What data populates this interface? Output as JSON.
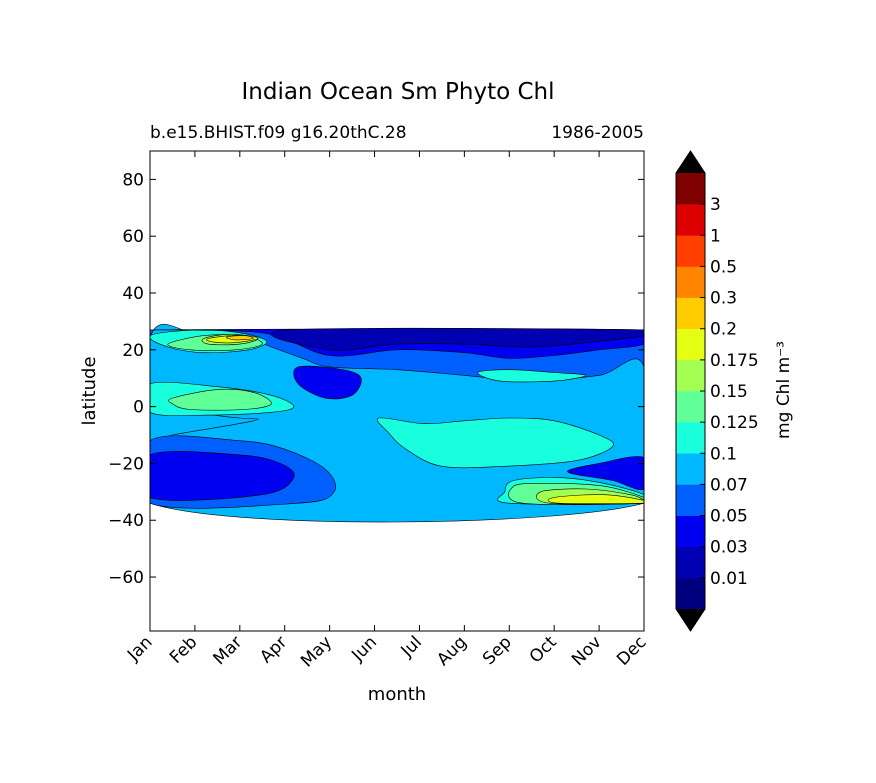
{
  "chart_data": {
    "type": "heatmap",
    "title": "Indian Ocean Sm Phyto Chl",
    "subtitle_left": "b.e15.BHIST.f09 g16.20thC.28",
    "subtitle_right": "1986-2005",
    "xlabel": "month",
    "ylabel": "latitude",
    "x_tick_labels": [
      "Jan",
      "Feb",
      "Mar",
      "Apr",
      "May",
      "Jun",
      "Jul",
      "Aug",
      "Sep",
      "Oct",
      "Nov",
      "Dec"
    ],
    "xlim": [
      0.5,
      11.5
    ],
    "y_ticks": [
      80,
      60,
      40,
      20,
      0,
      -20,
      -40,
      -60
    ],
    "y_tick_labels": [
      "80",
      "60",
      "40",
      "20",
      "0",
      "−20",
      "−40",
      "−60"
    ],
    "ylim": [
      -79,
      90
    ],
    "data_lat_range": [
      -34,
      27
    ],
    "colorbar": {
      "label": "mg Chl m⁻³",
      "levels": [
        "0.01",
        "0.03",
        "0.05",
        "0.07",
        "0.1",
        "0.125",
        "0.15",
        "0.175",
        "0.2",
        "0.3",
        "0.5",
        "1",
        "3"
      ],
      "colors": [
        "#000080",
        "#0000b2",
        "#0000f1",
        "#0060ff",
        "#00b8ff",
        "#19ffde",
        "#60ff97",
        "#a4ff53",
        "#e4ff13",
        "#ffcc00",
        "#ff8400",
        "#ff3f00",
        "#dc0000",
        "#800000"
      ],
      "under_color": "#000000",
      "over_color": "#000000"
    },
    "regions": [
      {
        "level": 3,
        "points": [
          [
            0.5,
            27
          ],
          [
            11.5,
            27
          ],
          [
            11.5,
            -34
          ],
          [
            0.5,
            -34
          ]
        ]
      },
      {
        "level": 4,
        "points": [
          [
            0.5,
            -2
          ],
          [
            1.5,
            -4
          ],
          [
            2.5,
            -5
          ],
          [
            3.5,
            -8
          ],
          [
            4.5,
            -12
          ],
          [
            6.2,
            -22
          ],
          [
            7.5,
            -24
          ],
          [
            9,
            -25
          ],
          [
            10.5,
            -21
          ],
          [
            11.5,
            -18
          ],
          [
            11.5,
            -13
          ],
          [
            10.5,
            -10
          ],
          [
            9.5,
            -6
          ],
          [
            8.5,
            -5
          ],
          [
            7,
            -4
          ],
          [
            5.8,
            -5
          ],
          [
            4.6,
            -4
          ],
          [
            3.8,
            0
          ],
          [
            3,
            4
          ],
          [
            2,
            7
          ],
          [
            1,
            8
          ],
          [
            0.5,
            8
          ]
        ]
      },
      {
        "level": 4,
        "points": [
          [
            0.5,
            24
          ],
          [
            1.5,
            26
          ],
          [
            2.5,
            25
          ],
          [
            3.2,
            21
          ],
          [
            3.9,
            17
          ],
          [
            4.5,
            14
          ],
          [
            6,
            13
          ],
          [
            7.5,
            11
          ],
          [
            9,
            9
          ],
          [
            10.5,
            11
          ],
          [
            11.5,
            14
          ],
          [
            11.5,
            -34
          ],
          [
            0.5,
            -34
          ]
        ]
      },
      {
        "level": 4,
        "points": [
          [
            0.5,
            -2
          ],
          [
            2.5,
            -4
          ],
          [
            2.8,
            -5
          ],
          [
            1,
            -10
          ],
          [
            0.5,
            -12
          ]
        ]
      },
      {
        "level": 3,
        "points": [
          [
            0.5,
            -12
          ],
          [
            2.5,
            -12
          ],
          [
            3.5,
            -15
          ],
          [
            4.4,
            -22
          ],
          [
            4.6,
            -30
          ],
          [
            3.8,
            -34
          ],
          [
            0.5,
            -34
          ]
        ]
      },
      {
        "level": 5,
        "points": [
          [
            0.5,
            8
          ],
          [
            2,
            7
          ],
          [
            3.2,
            4
          ],
          [
            3.7,
            0
          ],
          [
            3.2,
            -2
          ],
          [
            1.8,
            -3
          ],
          [
            0.5,
            -2
          ]
        ]
      },
      {
        "level": 5,
        "points": [
          [
            0.5,
            25
          ],
          [
            1.5,
            27
          ],
          [
            2.5,
            26
          ],
          [
            3.1,
            23
          ],
          [
            2.7,
            20
          ],
          [
            1.7,
            19
          ],
          [
            0.9,
            21
          ]
        ]
      },
      {
        "level": 5,
        "points": [
          [
            5.6,
            -4
          ],
          [
            6.6,
            -6
          ],
          [
            7.5,
            -5
          ],
          [
            8.5,
            -4
          ],
          [
            9.5,
            -5
          ],
          [
            10.5,
            -10
          ],
          [
            10.8,
            -14
          ],
          [
            10,
            -19
          ],
          [
            8.4,
            -21
          ],
          [
            7,
            -21
          ],
          [
            6.2,
            -15
          ],
          [
            5.8,
            -9
          ]
        ]
      },
      {
        "level": 5,
        "points": [
          [
            7.8,
            12
          ],
          [
            8.5,
            13
          ],
          [
            9.5,
            12
          ],
          [
            10.2,
            11
          ],
          [
            9.5,
            9
          ],
          [
            8.3,
            9
          ]
        ]
      },
      {
        "level": 5,
        "points": [
          [
            8.6,
            -26
          ],
          [
            9.6,
            -25
          ],
          [
            10.6,
            -27
          ],
          [
            11.5,
            -31
          ],
          [
            11.5,
            -34
          ],
          [
            8.5,
            -34
          ],
          [
            8.4,
            -30
          ]
        ]
      },
      {
        "level": 6,
        "points": [
          [
            1,
            3
          ],
          [
            2,
            6
          ],
          [
            2.8,
            5
          ],
          [
            3.2,
            1
          ],
          [
            2.6,
            -1
          ],
          [
            1.4,
            -1
          ],
          [
            1,
            1
          ]
        ]
      },
      {
        "level": 6,
        "points": [
          [
            0.9,
            22
          ],
          [
            1.7,
            25
          ],
          [
            2.6,
            25
          ],
          [
            3,
            22
          ],
          [
            2.4,
            20
          ],
          [
            1.4,
            20
          ]
        ]
      },
      {
        "level": 6,
        "points": [
          [
            8.6,
            -28
          ],
          [
            9.4,
            -27
          ],
          [
            10.6,
            -28
          ],
          [
            11.5,
            -32
          ],
          [
            11.5,
            -34
          ],
          [
            8.8,
            -34
          ]
        ]
      },
      {
        "level": 7,
        "points": [
          [
            1.7,
            24
          ],
          [
            2.3,
            25.5
          ],
          [
            2.9,
            24
          ],
          [
            2.5,
            22
          ],
          [
            1.8,
            22
          ]
        ]
      },
      {
        "level": 7,
        "points": [
          [
            9.2,
            -30
          ],
          [
            10.2,
            -29
          ],
          [
            11.2,
            -31
          ],
          [
            11.5,
            -33
          ],
          [
            11.5,
            -34
          ],
          [
            9.4,
            -34
          ]
        ]
      },
      {
        "level": 8,
        "points": [
          [
            1.8,
            24
          ],
          [
            2.5,
            25.2
          ],
          [
            2.9,
            24
          ],
          [
            2.4,
            22.5
          ],
          [
            1.9,
            22.8
          ]
        ]
      },
      {
        "level": 8,
        "points": [
          [
            9.5,
            -32
          ],
          [
            10.6,
            -31
          ],
          [
            11.5,
            -33
          ],
          [
            11.5,
            -34
          ],
          [
            9.6,
            -34
          ]
        ]
      },
      {
        "level": 9,
        "points": [
          [
            2.2,
            24.5
          ],
          [
            2.6,
            25
          ],
          [
            2.8,
            24
          ],
          [
            2.4,
            23.5
          ]
        ]
      },
      {
        "level": 2,
        "points": [
          [
            4.5,
            18
          ],
          [
            6,
            20
          ],
          [
            7.5,
            19
          ],
          [
            8.5,
            17
          ],
          [
            9.5,
            18
          ],
          [
            10.5,
            20
          ],
          [
            11.5,
            22
          ],
          [
            11.5,
            27
          ],
          [
            0.5,
            27
          ],
          [
            3,
            26
          ]
        ]
      },
      {
        "level": 2,
        "points": [
          [
            3.8,
            14
          ],
          [
            4.8,
            13
          ],
          [
            5.2,
            10
          ],
          [
            5,
            4
          ],
          [
            4.4,
            3
          ],
          [
            3.8,
            8
          ]
        ]
      },
      {
        "level": 2,
        "points": [
          [
            0.5,
            -17
          ],
          [
            2.5,
            -17
          ],
          [
            3.4,
            -20
          ],
          [
            3.7,
            -25
          ],
          [
            3,
            -31
          ],
          [
            0.5,
            -32
          ]
        ]
      },
      {
        "level": 2,
        "points": [
          [
            9.8,
            -23
          ],
          [
            10.5,
            -20
          ],
          [
            11.5,
            -18
          ],
          [
            11.5,
            -29
          ],
          [
            10.8,
            -26
          ]
        ]
      },
      {
        "level": 1,
        "points": [
          [
            4.5,
            20
          ],
          [
            6,
            22
          ],
          [
            7.5,
            22
          ],
          [
            9,
            21
          ],
          [
            10.5,
            23
          ],
          [
            11.5,
            25
          ],
          [
            11.5,
            27
          ],
          [
            3.6,
            27
          ]
        ]
      }
    ]
  }
}
